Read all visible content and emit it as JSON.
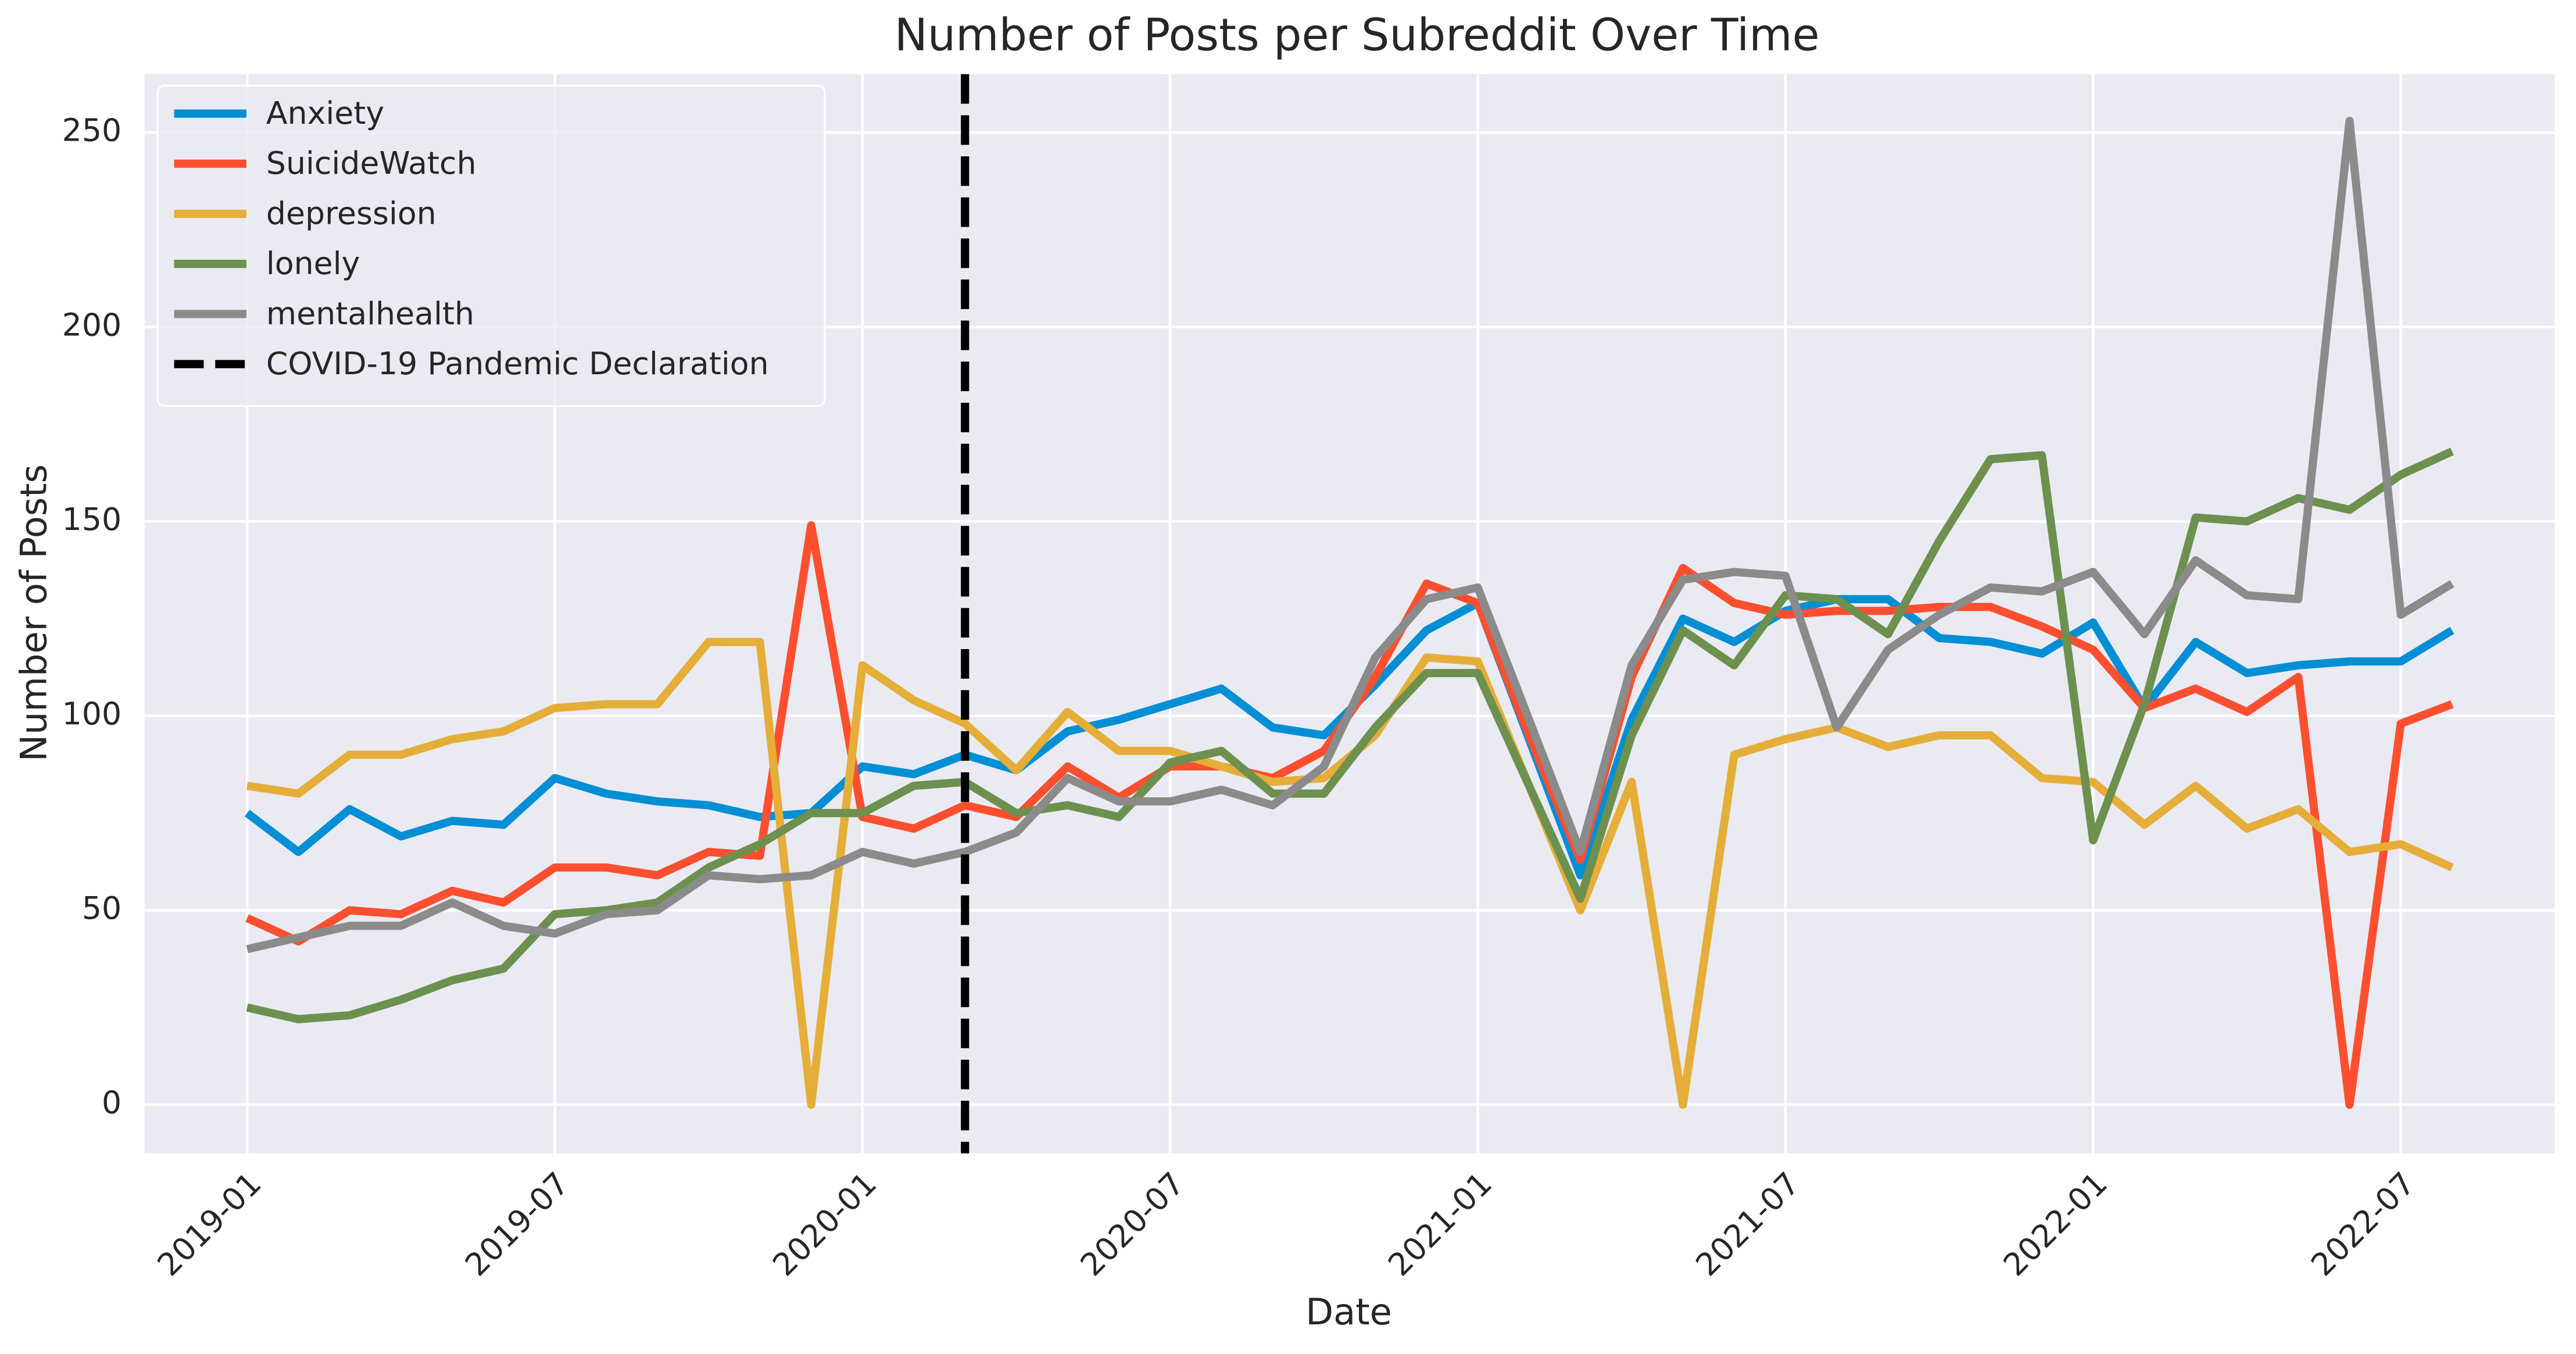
{
  "chart_data": {
    "type": "line",
    "title": "Number of Posts per Subreddit Over Time",
    "xlabel": "Date",
    "ylabel": "Number of Posts",
    "x": [
      "2019-01",
      "2019-02",
      "2019-03",
      "2019-04",
      "2019-05",
      "2019-06",
      "2019-07",
      "2019-08",
      "2019-09",
      "2019-10",
      "2019-11",
      "2019-12",
      "2020-01",
      "2020-02",
      "2020-03",
      "2020-04",
      "2020-05",
      "2020-06",
      "2020-07",
      "2020-08",
      "2020-09",
      "2020-10",
      "2020-11",
      "2020-12",
      "2021-01",
      "2021-02",
      "2021-03",
      "2021-04",
      "2021-05",
      "2021-06",
      "2021-07",
      "2021-08",
      "2021-09",
      "2021-10",
      "2021-11",
      "2021-12",
      "2022-01",
      "2022-02",
      "2022-03",
      "2022-04",
      "2022-05",
      "2022-06",
      "2022-07",
      "2022-08"
    ],
    "series": [
      {
        "name": "Anxiety",
        "color": "#008fd5",
        "values": [
          75,
          65,
          76,
          69,
          73,
          72,
          84,
          80,
          78,
          77,
          74,
          75,
          87,
          85,
          90,
          86,
          96,
          99,
          103,
          107,
          97,
          95,
          108,
          122,
          129,
          94,
          59,
          99,
          125,
          119,
          127,
          130,
          130,
          120,
          119,
          116,
          124,
          102,
          119,
          111,
          113,
          114,
          114,
          122
        ]
      },
      {
        "name": "SuicideWatch",
        "color": "#fc4f30",
        "values": [
          48,
          42,
          50,
          49,
          55,
          52,
          61,
          61,
          59,
          65,
          64,
          149,
          74,
          71,
          77,
          74,
          87,
          79,
          87,
          87,
          84,
          91,
          110,
          134,
          129,
          95,
          63,
          110,
          138,
          129,
          126,
          127,
          127,
          128,
          128,
          123,
          117,
          102,
          107,
          101,
          110,
          0,
          98,
          103
        ]
      },
      {
        "name": "depression",
        "color": "#e5ae38",
        "values": [
          82,
          80,
          90,
          90,
          94,
          96,
          102,
          103,
          103,
          119,
          119,
          0,
          113,
          104,
          98,
          86,
          101,
          91,
          91,
          87,
          83,
          84,
          95,
          115,
          114,
          82,
          50,
          83,
          0,
          90,
          94,
          97,
          92,
          95,
          95,
          84,
          83,
          72,
          82,
          71,
          76,
          65,
          67,
          61
        ]
      },
      {
        "name": "lonely",
        "color": "#6d904f",
        "values": [
          25,
          22,
          23,
          27,
          32,
          35,
          49,
          50,
          52,
          61,
          67,
          75,
          75,
          82,
          83,
          75,
          77,
          74,
          88,
          91,
          80,
          80,
          97,
          111,
          111,
          82,
          53,
          95,
          122,
          113,
          131,
          130,
          121,
          145,
          166,
          167,
          68,
          103,
          151,
          150,
          156,
          153,
          162,
          168
        ]
      },
      {
        "name": "mentalhealth",
        "color": "#8b8b8b",
        "values": [
          40,
          43,
          46,
          46,
          52,
          46,
          44,
          49,
          50,
          59,
          58,
          59,
          65,
          62,
          65,
          70,
          84,
          78,
          78,
          81,
          77,
          87,
          115,
          130,
          133,
          99,
          65,
          113,
          135,
          137,
          136,
          97,
          117,
          126,
          133,
          132,
          137,
          121,
          140,
          131,
          130,
          253,
          126,
          134
        ]
      }
    ],
    "vlines": [
      {
        "x": "2020-03",
        "label": "COVID-19 Pandemic Declaration",
        "color": "#000000"
      }
    ],
    "xlim": [
      "2018-11",
      "2022-10"
    ],
    "xticks": [
      "2019-01",
      "2019-07",
      "2020-01",
      "2020-07",
      "2021-01",
      "2021-07",
      "2022-01",
      "2022-07"
    ],
    "ylim": [
      -12.5,
      265
    ],
    "yticks": [
      0,
      50,
      100,
      150,
      200,
      250
    ],
    "grid": true,
    "legend": "upper left"
  }
}
